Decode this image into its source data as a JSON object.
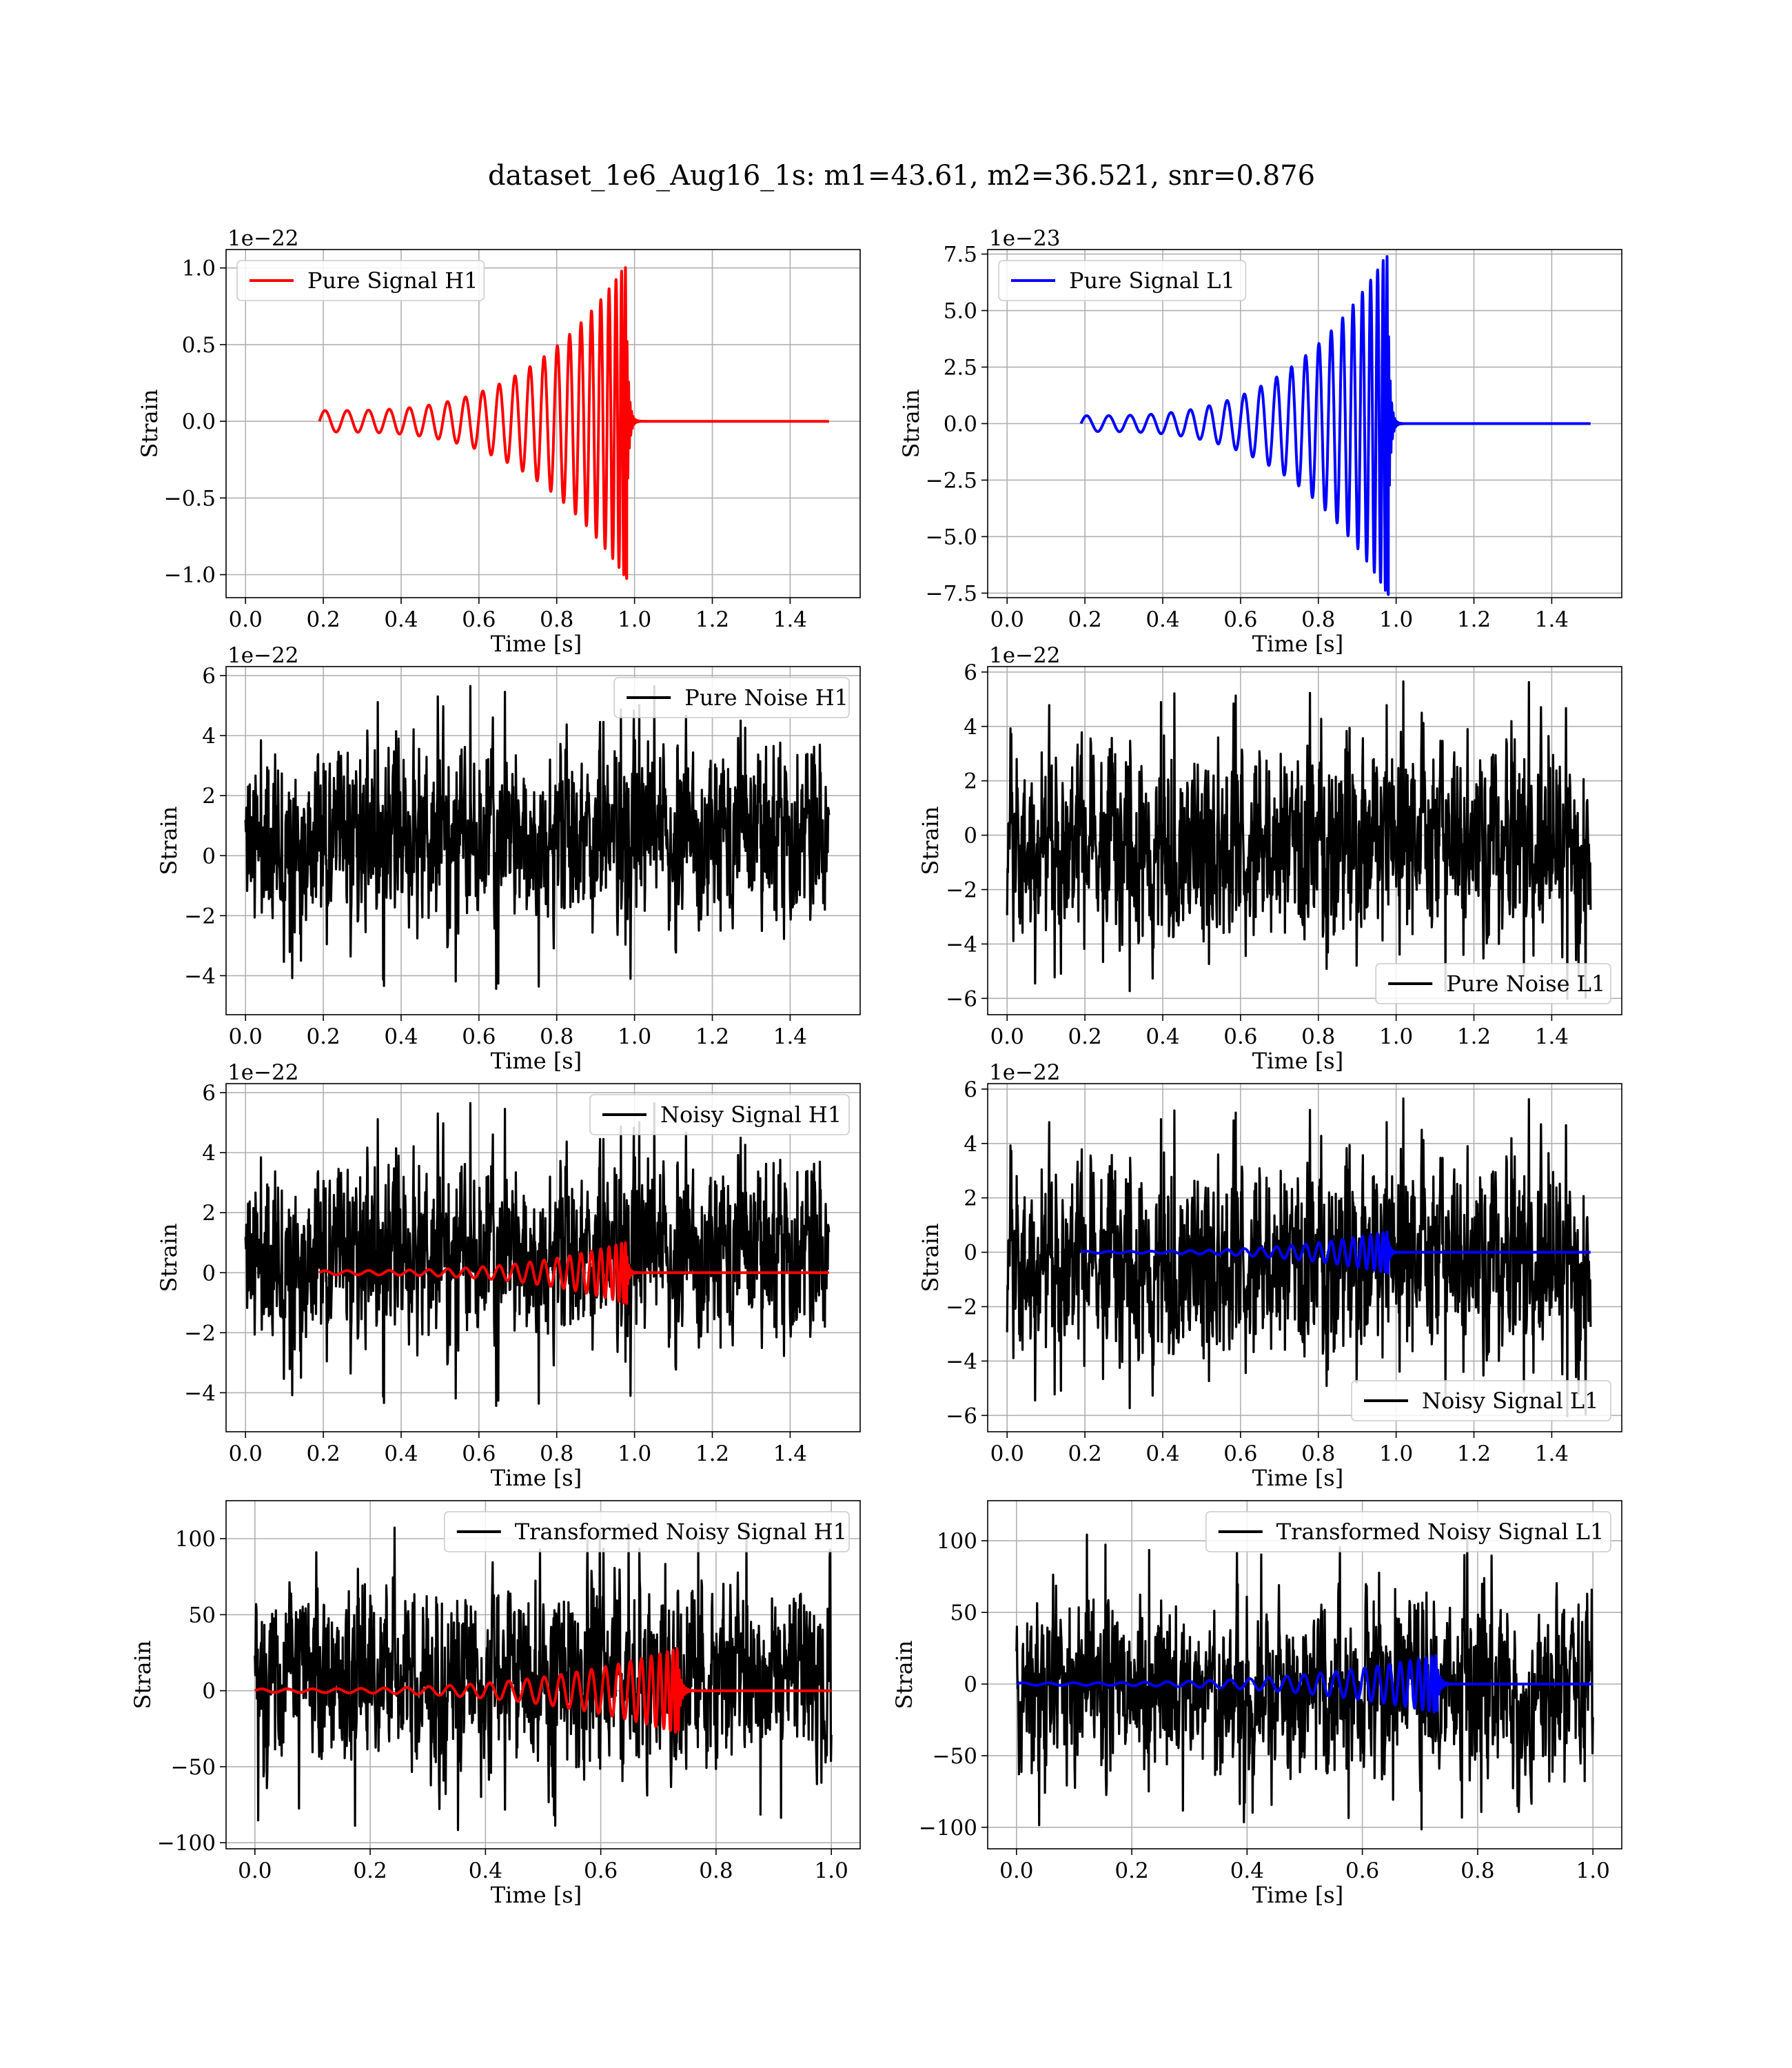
{
  "figure": {
    "title": "dataset_1e6_Aug16_1s: m1=43.61, m2=36.521, snr=0.876"
  },
  "colors": {
    "signal_h1": "#ff0000",
    "signal_l1": "#0000ff",
    "noise": "#000000",
    "grid": "#b0b0b0"
  },
  "chart_data": [
    {
      "id": "pure-signal-h1",
      "type": "line",
      "xlabel": "Time [s]",
      "ylabel": "Strain",
      "offset_label": "1e−22",
      "xlim": [
        -0.05,
        1.58
      ],
      "ylim": [
        -1.15,
        1.12
      ],
      "xticks": [
        0.0,
        0.2,
        0.4,
        0.6,
        0.8,
        1.0,
        1.2,
        1.4
      ],
      "xtick_labels": [
        "0.0",
        "0.2",
        "0.4",
        "0.6",
        "0.8",
        "1.0",
        "1.2",
        "1.4"
      ],
      "yticks": [
        1.0,
        0.5,
        0.0,
        -0.5,
        -1.0
      ],
      "ytick_labels": [
        "1.0",
        "0.5",
        "0.0",
        "−0.5",
        "−1.0"
      ],
      "legend_position": "top-left",
      "grid": true,
      "series": [
        {
          "name": "Pure Signal H1",
          "kind": "chirp",
          "color": "#ff0000",
          "t_start": 0.19,
          "t_merge": 0.98,
          "t_end": 1.5,
          "amp_start": 0.07,
          "amp_peak": 1.03,
          "cycles": 22
        }
      ]
    },
    {
      "id": "pure-signal-l1",
      "type": "line",
      "xlabel": "Time [s]",
      "ylabel": "Strain",
      "offset_label": "1e−23",
      "xlim": [
        -0.05,
        1.58
      ],
      "ylim": [
        -7.7,
        7.7
      ],
      "xticks": [
        0.0,
        0.2,
        0.4,
        0.6,
        0.8,
        1.0,
        1.2,
        1.4
      ],
      "xtick_labels": [
        "0.0",
        "0.2",
        "0.4",
        "0.6",
        "0.8",
        "1.0",
        "1.2",
        "1.4"
      ],
      "yticks": [
        7.5,
        5.0,
        2.5,
        0.0,
        -2.5,
        -5.0,
        -7.5
      ],
      "ytick_labels": [
        "7.5",
        "5.0",
        "2.5",
        "0.0",
        "−2.5",
        "−5.0",
        "−7.5"
      ],
      "legend_position": "top-left",
      "grid": true,
      "series": [
        {
          "name": "Pure Signal L1",
          "kind": "chirp",
          "color": "#0000ff",
          "t_start": 0.19,
          "t_merge": 0.98,
          "t_end": 1.5,
          "amp_start": 0.35,
          "amp_peak": 7.6,
          "cycles": 22
        }
      ]
    },
    {
      "id": "pure-noise-h1",
      "type": "line",
      "xlabel": "Time [s]",
      "ylabel": "Strain",
      "offset_label": "1e−22",
      "xlim": [
        -0.05,
        1.58
      ],
      "ylim": [
        -5.3,
        6.3
      ],
      "xticks": [
        0.0,
        0.2,
        0.4,
        0.6,
        0.8,
        1.0,
        1.2,
        1.4
      ],
      "xtick_labels": [
        "0.0",
        "0.2",
        "0.4",
        "0.6",
        "0.8",
        "1.0",
        "1.2",
        "1.4"
      ],
      "yticks": [
        6,
        4,
        2,
        0,
        -2,
        -4
      ],
      "ytick_labels": [
        "6",
        "4",
        "2",
        "0",
        "−2",
        "−4"
      ],
      "legend_position": "top-right",
      "grid": true,
      "series": [
        {
          "name": "Pure Noise H1",
          "kind": "noise",
          "color": "#000000",
          "t_start": 0.0,
          "t_end": 1.5,
          "ymin": -4.8,
          "ymax": 5.9,
          "seed": 11
        }
      ]
    },
    {
      "id": "pure-noise-l1",
      "type": "line",
      "xlabel": "Time [s]",
      "ylabel": "Strain",
      "offset_label": "1e−22",
      "xlim": [
        -0.05,
        1.58
      ],
      "ylim": [
        -6.6,
        6.2
      ],
      "xticks": [
        0.0,
        0.2,
        0.4,
        0.6,
        0.8,
        1.0,
        1.2,
        1.4
      ],
      "xtick_labels": [
        "0.0",
        "0.2",
        "0.4",
        "0.6",
        "0.8",
        "1.0",
        "1.2",
        "1.4"
      ],
      "yticks": [
        6,
        4,
        2,
        0,
        -2,
        -4,
        -6
      ],
      "ytick_labels": [
        "6",
        "4",
        "2",
        "0",
        "−2",
        "−4",
        "−6"
      ],
      "legend_position": "bottom-right",
      "grid": true,
      "series": [
        {
          "name": "Pure Noise L1",
          "kind": "noise",
          "color": "#000000",
          "t_start": 0.0,
          "t_end": 1.5,
          "ymin": -6.2,
          "ymax": 5.7,
          "seed": 23
        }
      ]
    },
    {
      "id": "noisy-signal-h1",
      "type": "line",
      "xlabel": "Time [s]",
      "ylabel": "Strain",
      "offset_label": "1e−22",
      "xlim": [
        -0.05,
        1.58
      ],
      "ylim": [
        -5.3,
        6.3
      ],
      "xticks": [
        0.0,
        0.2,
        0.4,
        0.6,
        0.8,
        1.0,
        1.2,
        1.4
      ],
      "xtick_labels": [
        "0.0",
        "0.2",
        "0.4",
        "0.6",
        "0.8",
        "1.0",
        "1.2",
        "1.4"
      ],
      "yticks": [
        6,
        4,
        2,
        0,
        -2,
        -4
      ],
      "ytick_labels": [
        "6",
        "4",
        "2",
        "0",
        "−2",
        "−4"
      ],
      "legend_position": "top-right",
      "grid": true,
      "series": [
        {
          "name": "Noisy Signal H1",
          "kind": "noise",
          "color": "#000000",
          "t_start": 0.0,
          "t_end": 1.5,
          "ymin": -4.8,
          "ymax": 5.9,
          "seed": 11
        },
        {
          "name": "",
          "kind": "chirp",
          "color": "#ff0000",
          "t_start": 0.19,
          "t_merge": 0.98,
          "t_end": 1.5,
          "amp_start": 0.07,
          "amp_peak": 1.03,
          "cycles": 22
        }
      ]
    },
    {
      "id": "noisy-signal-l1",
      "type": "line",
      "xlabel": "Time [s]",
      "ylabel": "Strain",
      "offset_label": "1e−22",
      "xlim": [
        -0.05,
        1.58
      ],
      "ylim": [
        -6.6,
        6.2
      ],
      "xticks": [
        0.0,
        0.2,
        0.4,
        0.6,
        0.8,
        1.0,
        1.2,
        1.4
      ],
      "xtick_labels": [
        "0.0",
        "0.2",
        "0.4",
        "0.6",
        "0.8",
        "1.0",
        "1.2",
        "1.4"
      ],
      "yticks": [
        6,
        4,
        2,
        0,
        -2,
        -4,
        -6
      ],
      "ytick_labels": [
        "6",
        "4",
        "2",
        "0",
        "−2",
        "−4",
        "−6"
      ],
      "legend_position": "bottom-right",
      "grid": true,
      "series": [
        {
          "name": "Noisy Signal L1",
          "kind": "noise",
          "color": "#000000",
          "t_start": 0.0,
          "t_end": 1.5,
          "ymin": -6.2,
          "ymax": 5.7,
          "seed": 23
        },
        {
          "name": "",
          "kind": "chirp",
          "color": "#0000ff",
          "t_start": 0.19,
          "t_merge": 0.98,
          "t_end": 1.5,
          "amp_start": 0.035,
          "amp_peak": 0.76,
          "cycles": 22
        }
      ]
    },
    {
      "id": "transformed-noisy-signal-h1",
      "type": "line",
      "xlabel": "Time [s]",
      "ylabel": "Strain",
      "offset_label": "",
      "xlim": [
        -0.05,
        1.05
      ],
      "ylim": [
        -104,
        125
      ],
      "xticks": [
        0.0,
        0.2,
        0.4,
        0.6,
        0.8,
        1.0
      ],
      "xtick_labels": [
        "0.0",
        "0.2",
        "0.4",
        "0.6",
        "0.8",
        "1.0"
      ],
      "yticks": [
        100,
        50,
        0,
        -50,
        -100
      ],
      "ytick_labels": [
        "100",
        "50",
        "0",
        "−50",
        "−100"
      ],
      "legend_position": "top-right",
      "grid": true,
      "series": [
        {
          "name": "Transformed Noisy Signal H1",
          "kind": "noise",
          "color": "#000000",
          "t_start": 0.0,
          "t_end": 1.0,
          "ymin": -92,
          "ymax": 110,
          "seed": 37
        },
        {
          "name": "",
          "kind": "chirp",
          "color": "#ff0000",
          "t_start": 0.0,
          "t_merge": 0.735,
          "t_end": 1.0,
          "amp_start": 1.2,
          "amp_peak": 28,
          "cycles": 26
        }
      ]
    },
    {
      "id": "transformed-noisy-signal-l1",
      "type": "line",
      "xlabel": "Time [s]",
      "ylabel": "Strain",
      "offset_label": "",
      "xlim": [
        -0.05,
        1.05
      ],
      "ylim": [
        -115,
        128
      ],
      "xticks": [
        0.0,
        0.2,
        0.4,
        0.6,
        0.8,
        1.0
      ],
      "xtick_labels": [
        "0.0",
        "0.2",
        "0.4",
        "0.6",
        "0.8",
        "1.0"
      ],
      "yticks": [
        100,
        50,
        0,
        -50,
        -100
      ],
      "ytick_labels": [
        "100",
        "50",
        "0",
        "−50",
        "−100"
      ],
      "legend_position": "top-right",
      "grid": true,
      "series": [
        {
          "name": "Transformed Noisy Signal L1",
          "kind": "noise",
          "color": "#000000",
          "t_start": 0.0,
          "t_end": 1.0,
          "ymin": -105,
          "ymax": 108,
          "seed": 41
        },
        {
          "name": "",
          "kind": "chirp",
          "color": "#0000ff",
          "t_start": 0.0,
          "t_merge": 0.73,
          "t_end": 1.0,
          "amp_start": 0.9,
          "amp_peak": 20,
          "cycles": 26
        }
      ]
    }
  ]
}
